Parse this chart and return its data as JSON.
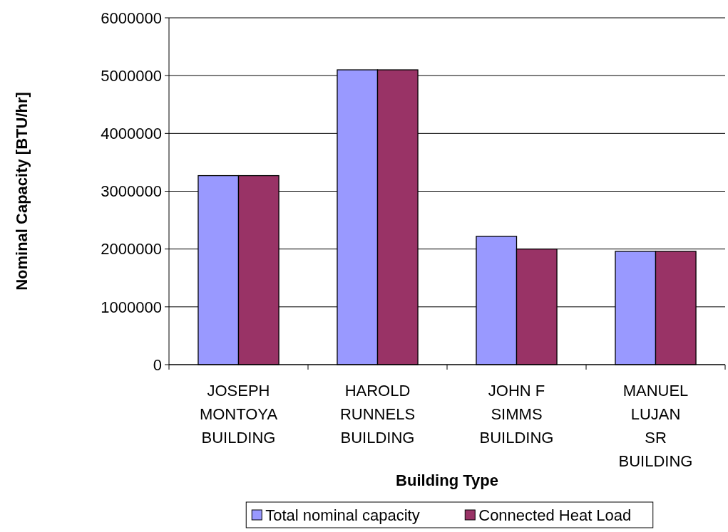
{
  "chart_data": {
    "type": "bar",
    "xlabel": "Building Type",
    "ylabel": "Nominal Capacity [BTU/hr]",
    "categories": [
      "JOSEPH MONTOYA BUILDING",
      "HAROLD RUNNELS BUILDING",
      "JOHN F SIMMS BUILDING",
      "MANUEL LUJAN SR BUILDING"
    ],
    "series": [
      {
        "name": "Total nominal capacity",
        "color": "#9999ff",
        "values": [
          3270000,
          5100000,
          2220000,
          1960000
        ]
      },
      {
        "name": "Connected Heat Load",
        "color": "#993366",
        "values": [
          3270000,
          5100000,
          2000000,
          1960000
        ]
      }
    ],
    "ylim": [
      0,
      6000000
    ],
    "yticks": [
      0,
      1000000,
      2000000,
      3000000,
      4000000,
      5000000,
      6000000
    ],
    "grid": "y",
    "legend": "bottom"
  }
}
